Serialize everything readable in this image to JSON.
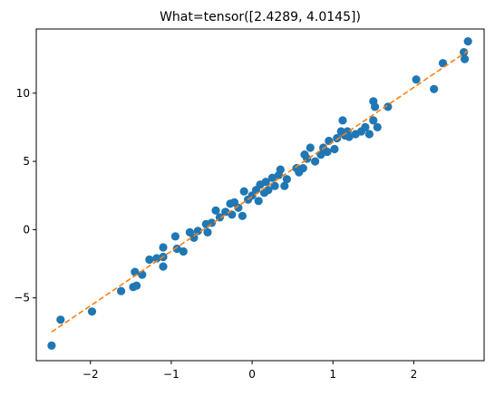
{
  "colors": {
    "points": "#1f77b4",
    "fit_line": "#ff7f0e"
  },
  "chart_data": {
    "type": "scatter",
    "title": "What=tensor([2.4289, 4.0145])",
    "xlabel": "",
    "ylabel": "",
    "xlim": [
      -2.67,
      2.87
    ],
    "ylim": [
      -9.6,
      14.7
    ],
    "x_ticks": [
      -2,
      -1,
      0,
      1,
      2
    ],
    "y_ticks": [
      -5,
      0,
      5,
      10
    ],
    "grid": false,
    "fit_line": {
      "style": "dashed",
      "x": [
        -2.48,
        2.67
      ],
      "y": [
        -7.5,
        13.1
      ]
    },
    "points": [
      [
        -2.48,
        -8.5
      ],
      [
        -2.37,
        -6.6
      ],
      [
        -1.98,
        -6.0
      ],
      [
        -1.62,
        -4.5
      ],
      [
        -1.47,
        -4.2
      ],
      [
        -1.43,
        -4.1
      ],
      [
        -1.45,
        -3.1
      ],
      [
        -1.36,
        -3.3
      ],
      [
        -1.27,
        -2.2
      ],
      [
        -1.18,
        -2.1
      ],
      [
        -1.1,
        -2.0
      ],
      [
        -1.1,
        -1.3
      ],
      [
        -1.1,
        -2.7
      ],
      [
        -0.95,
        -0.5
      ],
      [
        -0.93,
        -1.4
      ],
      [
        -0.85,
        -1.6
      ],
      [
        -0.77,
        -0.2
      ],
      [
        -0.72,
        -0.6
      ],
      [
        -0.67,
        -0.1
      ],
      [
        -0.57,
        0.4
      ],
      [
        -0.55,
        -0.2
      ],
      [
        -0.5,
        0.5
      ],
      [
        -0.45,
        1.4
      ],
      [
        -0.4,
        0.9
      ],
      [
        -0.33,
        1.3
      ],
      [
        -0.27,
        1.9
      ],
      [
        -0.25,
        1.1
      ],
      [
        -0.22,
        2.0
      ],
      [
        -0.17,
        1.6
      ],
      [
        -0.12,
        1.0
      ],
      [
        -0.1,
        2.8
      ],
      [
        -0.05,
        2.2
      ],
      [
        0.0,
        2.5
      ],
      [
        0.05,
        2.9
      ],
      [
        0.08,
        2.1
      ],
      [
        0.1,
        3.3
      ],
      [
        0.15,
        2.7
      ],
      [
        0.17,
        3.5
      ],
      [
        0.2,
        2.9
      ],
      [
        0.25,
        3.8
      ],
      [
        0.28,
        3.2
      ],
      [
        0.33,
        4.0
      ],
      [
        0.35,
        4.4
      ],
      [
        0.4,
        3.2
      ],
      [
        0.43,
        3.7
      ],
      [
        0.55,
        4.5
      ],
      [
        0.58,
        4.2
      ],
      [
        0.63,
        4.5
      ],
      [
        0.65,
        5.5
      ],
      [
        0.68,
        5.2
      ],
      [
        0.72,
        6.0
      ],
      [
        0.78,
        5.0
      ],
      [
        0.85,
        5.5
      ],
      [
        0.88,
        6.0
      ],
      [
        0.93,
        5.7
      ],
      [
        0.95,
        6.5
      ],
      [
        1.02,
        5.9
      ],
      [
        1.05,
        6.7
      ],
      [
        1.1,
        7.2
      ],
      [
        1.15,
        6.9
      ],
      [
        1.18,
        7.2
      ],
      [
        1.2,
        6.8
      ],
      [
        1.28,
        7.0
      ],
      [
        1.35,
        7.2
      ],
      [
        1.4,
        7.5
      ],
      [
        1.45,
        7.0
      ],
      [
        1.5,
        8.0
      ],
      [
        1.55,
        7.5
      ],
      [
        1.12,
        8.0
      ],
      [
        1.5,
        9.4
      ],
      [
        1.52,
        9.0
      ],
      [
        1.68,
        9.0
      ],
      [
        2.03,
        11.0
      ],
      [
        2.25,
        10.3
      ],
      [
        2.36,
        12.2
      ],
      [
        2.62,
        13.0
      ],
      [
        2.63,
        12.5
      ],
      [
        2.67,
        13.8
      ]
    ]
  }
}
